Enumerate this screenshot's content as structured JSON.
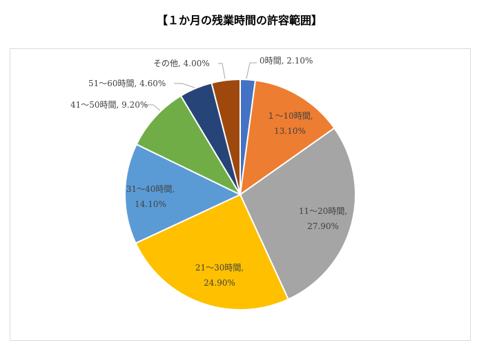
{
  "title": "【１か月の残業時間の許容範囲】",
  "chart_data": {
    "type": "pie",
    "title": "【１か月の残業時間の許容範囲】",
    "legend": "none",
    "categories": [
      "0時間",
      "１～10時間",
      "11～20時間",
      "21～30時間",
      "31～40時間",
      "41～50時間",
      "51～60時間",
      "その他"
    ],
    "values": [
      2.1,
      13.1,
      27.9,
      24.9,
      14.1,
      9.2,
      4.6,
      4.0
    ],
    "value_labels": [
      "2.10%",
      "13.10%",
      "27.90%",
      "24.90%",
      "14.10%",
      "9.20%",
      "4.60%",
      "4.00%"
    ],
    "colors": [
      "#4472c4",
      "#ed7d31",
      "#a5a5a5",
      "#ffc000",
      "#5b9bd5",
      "#70ad47",
      "#264478",
      "#9e480e"
    ]
  }
}
